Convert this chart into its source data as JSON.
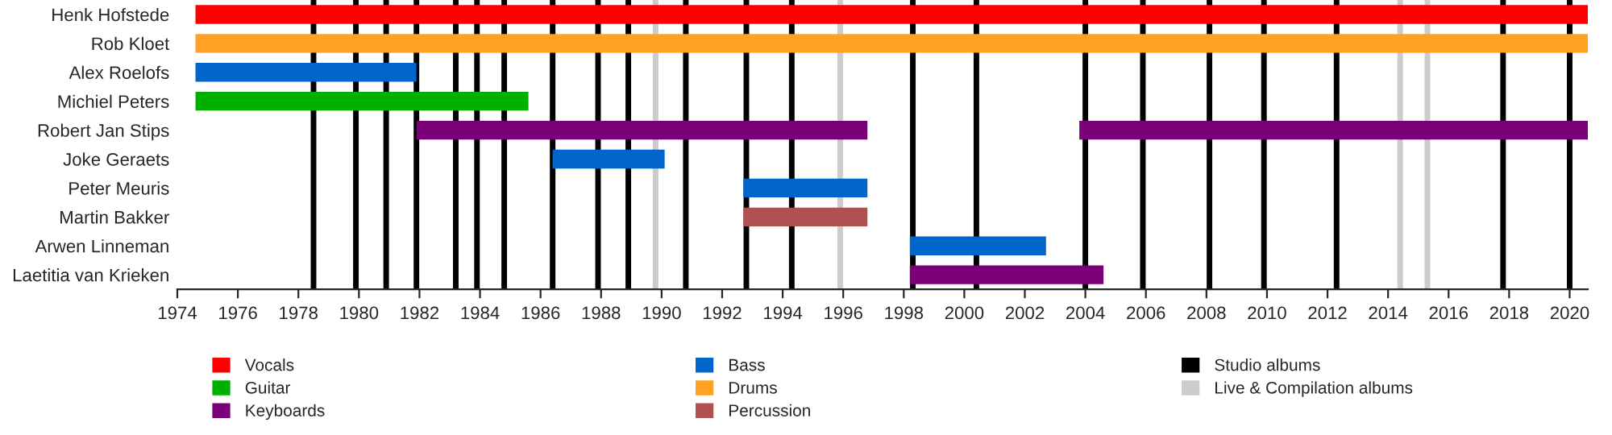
{
  "chart_data": {
    "type": "bar",
    "orientation": "horizontal",
    "categories": [
      "Henk Hofstede",
      "Rob Kloet",
      "Alex Roelofs",
      "Michiel Peters",
      "Robert Jan Stips",
      "Joke Geraets",
      "Peter Meuris",
      "Martin Bakker",
      "Arwen Linneman",
      "Laetitia van Krieken"
    ],
    "series": [
      {
        "name": "Vocals",
        "color": "#ff0000",
        "base": [
          1974.6,
          null,
          null,
          null,
          null,
          null,
          null,
          null,
          null,
          null
        ],
        "values": [
          46.0,
          null,
          null,
          null,
          null,
          null,
          null,
          null,
          null,
          null
        ]
      },
      {
        "name": "Guitar",
        "color": "#00b000",
        "base": [
          null,
          null,
          null,
          1974.6,
          null,
          null,
          null,
          null,
          null,
          null
        ],
        "values": [
          null,
          null,
          null,
          11.0,
          null,
          null,
          null,
          null,
          null,
          null
        ]
      },
      {
        "name": "Keyboards",
        "color": "#7b0077",
        "base": [
          null,
          null,
          null,
          null,
          1981.9,
          null,
          null,
          null,
          null,
          1998.2
        ],
        "values": [
          null,
          null,
          null,
          null,
          14.9,
          null,
          null,
          null,
          null,
          6.4
        ]
      },
      {
        "name": "Bass",
        "color": "#0066cc",
        "base": [
          null,
          null,
          1974.6,
          null,
          null,
          1986.4,
          1992.7,
          null,
          1998.2,
          null
        ],
        "values": [
          null,
          null,
          7.3,
          null,
          null,
          3.7,
          4.1,
          null,
          4.5,
          null
        ]
      },
      {
        "name": "Drums",
        "color": "#ffa125",
        "base": [
          null,
          1974.6,
          null,
          null,
          null,
          null,
          null,
          null,
          null,
          null
        ],
        "values": [
          null,
          46.0,
          null,
          null,
          null,
          null,
          null,
          null,
          null,
          null
        ]
      },
      {
        "name": "Percussion",
        "color": "#b05050",
        "base": [
          null,
          null,
          null,
          null,
          null,
          null,
          null,
          1992.7,
          null,
          null
        ],
        "values": [
          null,
          null,
          null,
          null,
          null,
          null,
          null,
          4.1,
          null,
          null
        ]
      },
      {
        "color": "#7b0077",
        "base": [
          null,
          null,
          null,
          null,
          2003.8,
          null,
          null,
          null,
          null,
          null
        ],
        "values": [
          null,
          null,
          null,
          null,
          16.8,
          null,
          null,
          null,
          null,
          null
        ]
      }
    ],
    "xlim": [
      1974,
      2020.6
    ],
    "xticks": [
      1974,
      1976,
      1978,
      1980,
      1982,
      1984,
      1986,
      1988,
      1990,
      1992,
      1994,
      1996,
      1998,
      2000,
      2002,
      2004,
      2006,
      2008,
      2010,
      2012,
      2014,
      2016,
      2018,
      2020
    ],
    "ref_lines": [
      {
        "axis": "x",
        "value": 1978.5,
        "color": "#000000",
        "label": "Studio albums"
      },
      {
        "axis": "x",
        "value": 1979.9,
        "color": "#000000"
      },
      {
        "axis": "x",
        "value": 1980.9,
        "color": "#000000"
      },
      {
        "axis": "x",
        "value": 1981.9,
        "color": "#000000"
      },
      {
        "axis": "x",
        "value": 1983.2,
        "color": "#000000"
      },
      {
        "axis": "x",
        "value": 1983.9,
        "color": "#000000"
      },
      {
        "axis": "x",
        "value": 1984.8,
        "color": "#000000"
      },
      {
        "axis": "x",
        "value": 1986.4,
        "color": "#000000"
      },
      {
        "axis": "x",
        "value": 1987.9,
        "color": "#000000"
      },
      {
        "axis": "x",
        "value": 1988.9,
        "color": "#000000"
      },
      {
        "axis": "x",
        "value": 1989.8,
        "color": "#cccccc",
        "label": "Live & Compilation albums"
      },
      {
        "axis": "x",
        "value": 1990.8,
        "color": "#000000"
      },
      {
        "axis": "x",
        "value": 1992.8,
        "color": "#000000"
      },
      {
        "axis": "x",
        "value": 1994.3,
        "color": "#000000"
      },
      {
        "axis": "x",
        "value": 1995.9,
        "color": "#cccccc"
      },
      {
        "axis": "x",
        "value": 1998.3,
        "color": "#000000"
      },
      {
        "axis": "x",
        "value": 2000.4,
        "color": "#000000"
      },
      {
        "axis": "x",
        "value": 2004.0,
        "color": "#000000"
      },
      {
        "axis": "x",
        "value": 2005.9,
        "color": "#000000"
      },
      {
        "axis": "x",
        "value": 2008.1,
        "color": "#000000"
      },
      {
        "axis": "x",
        "value": 2009.9,
        "color": "#000000"
      },
      {
        "axis": "x",
        "value": 2012.3,
        "color": "#000000"
      },
      {
        "axis": "x",
        "value": 2014.4,
        "color": "#cccccc"
      },
      {
        "axis": "x",
        "value": 2015.3,
        "color": "#cccccc"
      },
      {
        "axis": "x",
        "value": 2017.8,
        "color": "#000000"
      },
      {
        "axis": "x",
        "value": 2020.0,
        "color": "#000000"
      }
    ],
    "legend": "bottom"
  }
}
